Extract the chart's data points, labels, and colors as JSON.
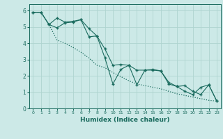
{
  "title": "",
  "xlabel": "Humidex (Indice chaleur)",
  "ylabel": "",
  "bg_color": "#cce9e7",
  "grid_color": "#afd4d0",
  "line_color": "#1a6b5e",
  "x_values": [
    0,
    1,
    2,
    3,
    4,
    5,
    6,
    7,
    8,
    9,
    10,
    11,
    12,
    13,
    14,
    15,
    16,
    17,
    18,
    19,
    20,
    21,
    22,
    23
  ],
  "line1_y": [
    5.9,
    5.9,
    5.15,
    4.95,
    5.25,
    5.3,
    5.45,
    4.4,
    4.45,
    3.1,
    1.5,
    2.4,
    2.65,
    1.45,
    2.35,
    2.35,
    2.3,
    1.5,
    1.35,
    1.05,
    0.85,
    1.3,
    1.45,
    0.45
  ],
  "line2_y": [
    5.9,
    5.9,
    5.15,
    5.55,
    5.3,
    5.35,
    5.45,
    4.9,
    4.45,
    3.65,
    2.65,
    2.7,
    2.65,
    2.35,
    2.35,
    2.4,
    2.3,
    1.6,
    1.35,
    1.4,
    1.05,
    0.85,
    1.45,
    0.45
  ],
  "line3_y": [
    5.9,
    5.9,
    5.15,
    4.2,
    4.0,
    3.75,
    3.45,
    3.1,
    2.65,
    2.5,
    2.2,
    1.95,
    1.7,
    1.5,
    1.4,
    1.3,
    1.2,
    1.05,
    0.9,
    0.8,
    0.7,
    0.6,
    0.5,
    0.45
  ],
  "xlim": [
    -0.5,
    23.5
  ],
  "ylim": [
    0,
    6.4
  ],
  "xticks": [
    0,
    1,
    2,
    3,
    4,
    5,
    6,
    7,
    8,
    9,
    10,
    11,
    12,
    13,
    14,
    15,
    16,
    17,
    18,
    19,
    20,
    21,
    22,
    23
  ],
  "yticks": [
    0,
    1,
    2,
    3,
    4,
    5,
    6
  ]
}
